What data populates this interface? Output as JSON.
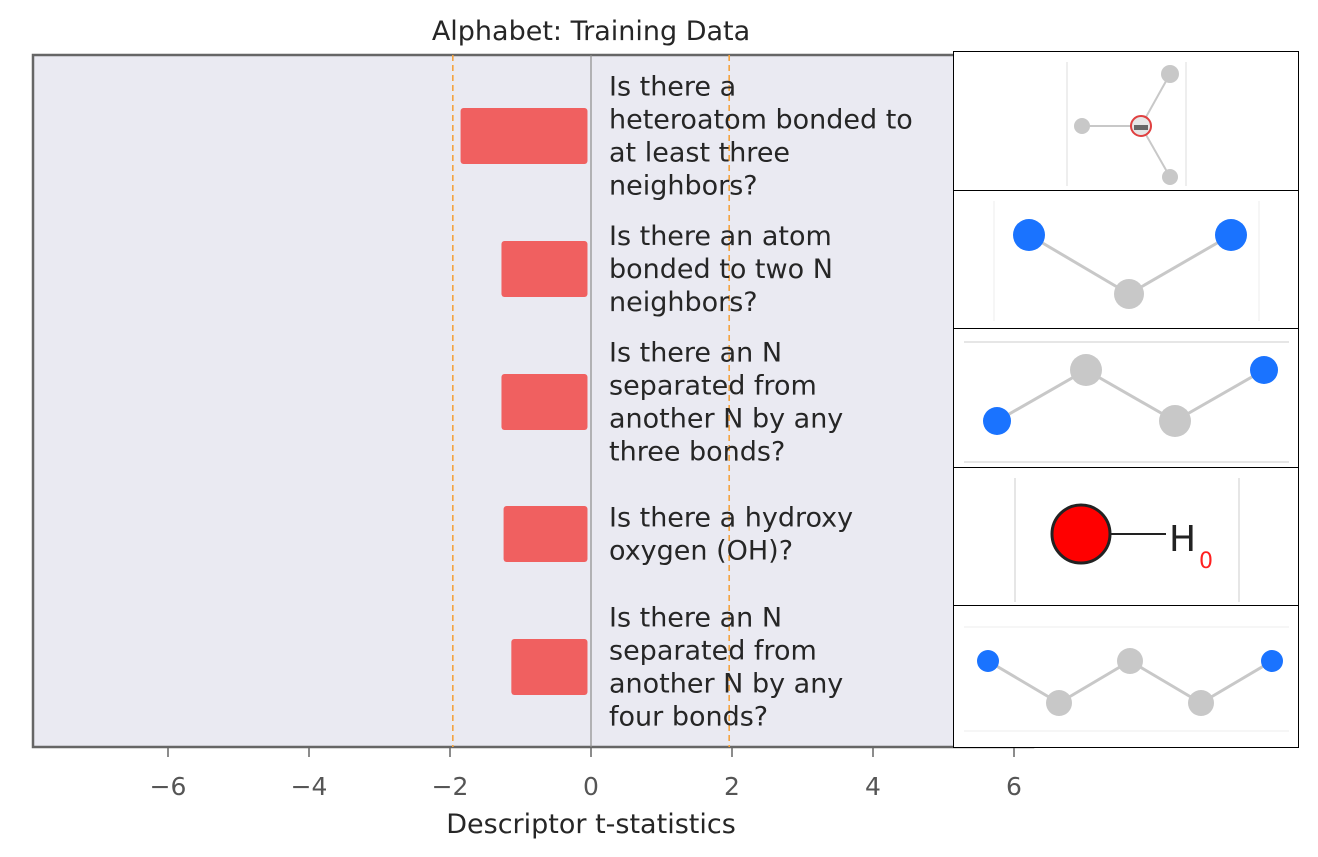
{
  "chart_data": {
    "type": "bar",
    "orientation": "horizontal",
    "title": "Alphabet: Training Data",
    "xlabel": "Descriptor t-statistics",
    "ylabel": "",
    "xlim": [
      -8,
      5.2
    ],
    "xticks": [
      -6,
      -4,
      -2,
      0,
      2,
      4,
      6
    ],
    "xtick_labels": [
      "−6",
      "−4",
      "−2",
      "0",
      "2",
      "4",
      "6"
    ],
    "reference_lines": [
      -1.96,
      1.96
    ],
    "grid": false,
    "categories": [
      "Is there a heteroatom bonded to at least three neighbors?",
      "Is there an atom bonded to two N neighbors?",
      "Is there an N separated from another N by any three bonds?",
      "Is there a hydroxy oxygen (OH)?",
      "Is there an N separated from another N by any four bonds?"
    ],
    "category_lines": [
      [
        "Is there a",
        "heteroatom bonded to",
        "at least three",
        "neighbors?"
      ],
      [
        "Is there an atom",
        "bonded to two N",
        "neighbors?"
      ],
      [
        "Is there an N",
        "separated from",
        "another N by any",
        "three bonds?"
      ],
      [
        "Is there a hydroxy",
        "oxygen (OH)?"
      ],
      [
        "Is there an N",
        "separated from",
        "another N by any",
        "four bonds?"
      ]
    ],
    "values": [
      -1.85,
      -1.27,
      -1.27,
      -1.24,
      -1.13
    ],
    "bar_color": "#f06060",
    "background_color": "#eaeaf2",
    "reference_line_color": "#f4a340"
  },
  "thumbnails": [
    {
      "name": "heteroatom-three-neighbors",
      "atoms": [
        "C",
        "C",
        "C",
        "N"
      ],
      "label": ""
    },
    {
      "name": "atom-two-n-neighbors",
      "atoms": [
        "N",
        "C",
        "N"
      ],
      "label": ""
    },
    {
      "name": "n-n-three-bonds",
      "atoms": [
        "N",
        "C",
        "C",
        "N"
      ],
      "label": ""
    },
    {
      "name": "hydroxy-oxygen",
      "atoms": [
        "O",
        "H"
      ],
      "label": "H",
      "sublabel": "0"
    },
    {
      "name": "n-n-four-bonds",
      "atoms": [
        "N",
        "C",
        "C",
        "C",
        "N"
      ],
      "label": ""
    }
  ],
  "colors": {
    "nitrogen": "#1a73ff",
    "carbon": "#c8c8c8",
    "oxygen": "#ff0000",
    "spine": "#666666"
  }
}
